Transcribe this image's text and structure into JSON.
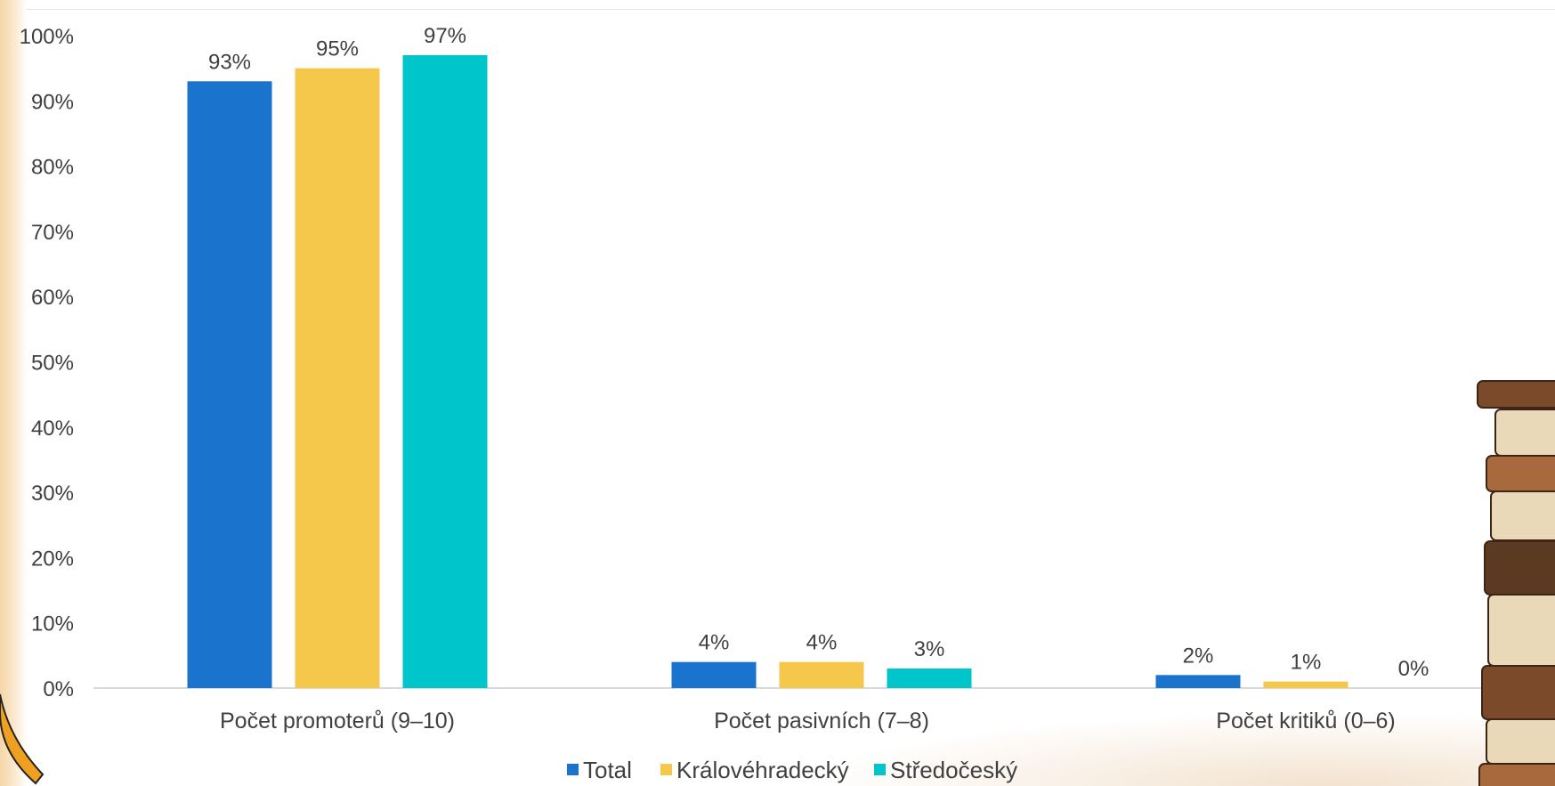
{
  "chart_data": {
    "type": "bar",
    "categories": [
      "Počet promoterů (9–10)",
      "Počet pasivních (7–8)",
      "Počet kritiků (0–6)"
    ],
    "series": [
      {
        "name": "Total",
        "color": "#1a73cc",
        "values": [
          93,
          4,
          2
        ],
        "labels": [
          "93%",
          "4%",
          "2%"
        ]
      },
      {
        "name": "Královéhradecký",
        "color": "#f5c84b",
        "values": [
          95,
          4,
          1
        ],
        "labels": [
          "95%",
          "4%",
          "1%"
        ]
      },
      {
        "name": "Středočeský",
        "color": "#00c6cc",
        "values": [
          97,
          3,
          0
        ],
        "labels": [
          "97%",
          "3%",
          "0%"
        ]
      }
    ],
    "y_ticks": [
      "0%",
      "10%",
      "20%",
      "30%",
      "40%",
      "50%",
      "60%",
      "70%",
      "80%",
      "90%",
      "100%"
    ],
    "ylim": [
      0,
      100
    ],
    "grid": false,
    "legend_position": "bottom"
  },
  "decor": {
    "left_edge_color": "#f6d6a8",
    "book_colors": [
      "#7a4a2a",
      "#a86a3c",
      "#e9d9b8",
      "#5c3a22"
    ],
    "arc_color": "#f0a020"
  }
}
